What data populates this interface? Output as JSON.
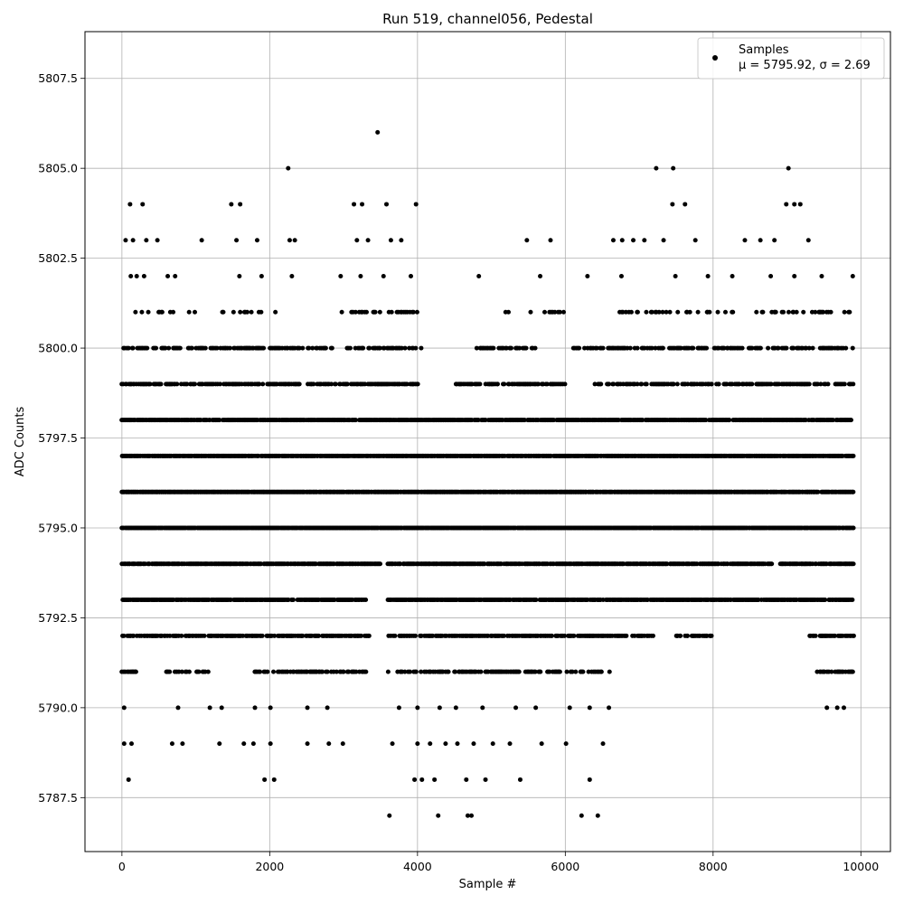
{
  "chart_data": {
    "type": "scatter",
    "title": "Run 519, channel056, Pedestal",
    "xlabel": "Sample #",
    "ylabel": "ADC Counts",
    "xlim": [
      -500,
      10400
    ],
    "ylim": [
      5786.0,
      5808.8
    ],
    "x_ticks": [
      0,
      2000,
      4000,
      6000,
      8000,
      10000
    ],
    "x_tick_labels": [
      "0",
      "2000",
      "4000",
      "6000",
      "8000",
      "10000"
    ],
    "y_ticks": [
      5787.5,
      5790.0,
      5792.5,
      5795.0,
      5797.5,
      5800.0,
      5802.5,
      5805.0,
      5807.5
    ],
    "y_tick_labels": [
      "5787.5",
      "5790.0",
      "5792.5",
      "5795.0",
      "5797.5",
      "5800.0",
      "5802.5",
      "5805.0",
      "5807.5"
    ],
    "grid": true,
    "legend_position": "top-right",
    "color": "#000000",
    "series": [
      {
        "name": "Samples",
        "legend_stats": "μ = 5795.92, σ = 2.69",
        "points": [
          {
            "x": 50,
            "y": 5803
          },
          {
            "x": 110,
            "y": 5804
          },
          {
            "x": 150,
            "y": 5803
          },
          {
            "x": 280,
            "y": 5804
          },
          {
            "x": 330,
            "y": 5803
          },
          {
            "x": 480,
            "y": 5803
          },
          {
            "x": 1080,
            "y": 5803
          },
          {
            "x": 1480,
            "y": 5804
          },
          {
            "x": 1550,
            "y": 5803
          },
          {
            "x": 1600,
            "y": 5804
          },
          {
            "x": 1830,
            "y": 5803
          },
          {
            "x": 2250,
            "y": 5805
          },
          {
            "x": 2270,
            "y": 5803
          },
          {
            "x": 2340,
            "y": 5803
          },
          {
            "x": 3140,
            "y": 5804
          },
          {
            "x": 3180,
            "y": 5803
          },
          {
            "x": 3250,
            "y": 5804
          },
          {
            "x": 3330,
            "y": 5803
          },
          {
            "x": 3460,
            "y": 5806
          },
          {
            "x": 3580,
            "y": 5804
          },
          {
            "x": 3640,
            "y": 5803
          },
          {
            "x": 3780,
            "y": 5803
          },
          {
            "x": 3980,
            "y": 5804
          },
          {
            "x": 5480,
            "y": 5803
          },
          {
            "x": 5800,
            "y": 5803
          },
          {
            "x": 6650,
            "y": 5803
          },
          {
            "x": 6770,
            "y": 5803
          },
          {
            "x": 6920,
            "y": 5803
          },
          {
            "x": 7070,
            "y": 5803
          },
          {
            "x": 7230,
            "y": 5805
          },
          {
            "x": 7330,
            "y": 5803
          },
          {
            "x": 7450,
            "y": 5804
          },
          {
            "x": 7460,
            "y": 5805
          },
          {
            "x": 7620,
            "y": 5804
          },
          {
            "x": 7760,
            "y": 5803
          },
          {
            "x": 8430,
            "y": 5803
          },
          {
            "x": 8640,
            "y": 5803
          },
          {
            "x": 8830,
            "y": 5803
          },
          {
            "x": 8990,
            "y": 5804
          },
          {
            "x": 9020,
            "y": 5805
          },
          {
            "x": 9100,
            "y": 5804
          },
          {
            "x": 9180,
            "y": 5804
          },
          {
            "x": 9290,
            "y": 5803
          },
          {
            "x": 30,
            "y": 5789
          },
          {
            "x": 90,
            "y": 5788
          },
          {
            "x": 130,
            "y": 5789
          },
          {
            "x": 680,
            "y": 5789
          },
          {
            "x": 820,
            "y": 5789
          },
          {
            "x": 1320,
            "y": 5789
          },
          {
            "x": 1650,
            "y": 5789
          },
          {
            "x": 1780,
            "y": 5789
          },
          {
            "x": 1930,
            "y": 5788
          },
          {
            "x": 2060,
            "y": 5788
          },
          {
            "x": 2010,
            "y": 5789
          },
          {
            "x": 2510,
            "y": 5789
          },
          {
            "x": 2800,
            "y": 5789
          },
          {
            "x": 2990,
            "y": 5789
          },
          {
            "x": 3620,
            "y": 5787
          },
          {
            "x": 3660,
            "y": 5789
          },
          {
            "x": 3960,
            "y": 5788
          },
          {
            "x": 4060,
            "y": 5788
          },
          {
            "x": 4000,
            "y": 5789
          },
          {
            "x": 4170,
            "y": 5789
          },
          {
            "x": 4230,
            "y": 5788
          },
          {
            "x": 4280,
            "y": 5787
          },
          {
            "x": 4380,
            "y": 5789
          },
          {
            "x": 4540,
            "y": 5789
          },
          {
            "x": 4660,
            "y": 5788
          },
          {
            "x": 4680,
            "y": 5787
          },
          {
            "x": 4730,
            "y": 5787
          },
          {
            "x": 4760,
            "y": 5789
          },
          {
            "x": 4920,
            "y": 5788
          },
          {
            "x": 5020,
            "y": 5789
          },
          {
            "x": 5250,
            "y": 5789
          },
          {
            "x": 5390,
            "y": 5788
          },
          {
            "x": 5680,
            "y": 5789
          },
          {
            "x": 6010,
            "y": 5789
          },
          {
            "x": 6220,
            "y": 5787
          },
          {
            "x": 6330,
            "y": 5788
          },
          {
            "x": 6440,
            "y": 5787
          },
          {
            "x": 6510,
            "y": 5789
          },
          {
            "x": 30,
            "y": 5790
          },
          {
            "x": 760,
            "y": 5790
          },
          {
            "x": 1190,
            "y": 5790
          },
          {
            "x": 1350,
            "y": 5790
          },
          {
            "x": 1800,
            "y": 5790
          },
          {
            "x": 2010,
            "y": 5790
          },
          {
            "x": 2510,
            "y": 5790
          },
          {
            "x": 2780,
            "y": 5790
          },
          {
            "x": 3750,
            "y": 5790
          },
          {
            "x": 4000,
            "y": 5790
          },
          {
            "x": 4300,
            "y": 5790
          },
          {
            "x": 4520,
            "y": 5790
          },
          {
            "x": 4880,
            "y": 5790
          },
          {
            "x": 5330,
            "y": 5790
          },
          {
            "x": 5600,
            "y": 5790
          },
          {
            "x": 6060,
            "y": 5790
          },
          {
            "x": 6330,
            "y": 5790
          },
          {
            "x": 6590,
            "y": 5790
          },
          {
            "x": 9540,
            "y": 5790
          },
          {
            "x": 9680,
            "y": 5790
          },
          {
            "x": 9770,
            "y": 5790
          },
          {
            "x": 120,
            "y": 5802
          },
          {
            "x": 200,
            "y": 5802
          },
          {
            "x": 300,
            "y": 5802
          },
          {
            "x": 620,
            "y": 5802
          },
          {
            "x": 720,
            "y": 5802
          },
          {
            "x": 1590,
            "y": 5802
          },
          {
            "x": 1890,
            "y": 5802
          },
          {
            "x": 2300,
            "y": 5802
          },
          {
            "x": 2960,
            "y": 5802
          },
          {
            "x": 3230,
            "y": 5802
          },
          {
            "x": 3540,
            "y": 5802
          },
          {
            "x": 3910,
            "y": 5802
          },
          {
            "x": 4830,
            "y": 5802
          },
          {
            "x": 5660,
            "y": 5802
          },
          {
            "x": 6300,
            "y": 5802
          },
          {
            "x": 6760,
            "y": 5802
          },
          {
            "x": 7490,
            "y": 5802
          },
          {
            "x": 7930,
            "y": 5802
          },
          {
            "x": 8260,
            "y": 5802
          },
          {
            "x": 8780,
            "y": 5802
          },
          {
            "x": 9100,
            "y": 5802
          },
          {
            "x": 9470,
            "y": 5802
          },
          {
            "x": 9890,
            "y": 5802
          }
        ],
        "dense_bands": [
          {
            "y": 5801,
            "segments": [
              [
                150,
                1050
              ],
              [
                1250,
                2100
              ],
              [
                2950,
                4100
              ],
              [
                5100,
                6000
              ],
              [
                6500,
                9850
              ]
            ],
            "density": 0.18
          },
          {
            "y": 5800,
            "segments": [
              [
                20,
                800
              ],
              [
                900,
                2850
              ],
              [
                3050,
                4050
              ],
              [
                4800,
                5600
              ],
              [
                6100,
                9900
              ]
            ],
            "density": 0.45
          },
          {
            "y": 5799,
            "segments": [
              [
                0,
                2400
              ],
              [
                2500,
                4000
              ],
              [
                4500,
                5500
              ],
              [
                5500,
                6000
              ],
              [
                6400,
                9900
              ]
            ],
            "density": 0.55
          },
          {
            "y": 5798,
            "segments": [
              [
                0,
                4600
              ],
              [
                4600,
                9900
              ]
            ],
            "density": 0.85
          },
          {
            "y": 5797,
            "segments": [
              [
                0,
                9900
              ]
            ],
            "density": 0.9
          },
          {
            "y": 5796,
            "segments": [
              [
                0,
                9900
              ]
            ],
            "density": 0.95
          },
          {
            "y": 5795,
            "segments": [
              [
                0,
                9900
              ]
            ],
            "density": 0.95
          },
          {
            "y": 5794,
            "segments": [
              [
                0,
                3500
              ],
              [
                3600,
                8800
              ],
              [
                8900,
                9900
              ]
            ],
            "density": 0.85
          },
          {
            "y": 5793,
            "segments": [
              [
                0,
                3300
              ],
              [
                3600,
                9900
              ]
            ],
            "density": 0.8
          },
          {
            "y": 5792,
            "segments": [
              [
                0,
                3350
              ],
              [
                3600,
                7200
              ],
              [
                7500,
                8000
              ],
              [
                9300,
                9900
              ]
            ],
            "density": 0.6
          },
          {
            "y": 5791,
            "segments": [
              [
                0,
                200
              ],
              [
                600,
                1200
              ],
              [
                1800,
                3300
              ],
              [
                3600,
                6600
              ],
              [
                9400,
                9900
              ]
            ],
            "density": 0.45
          }
        ]
      }
    ]
  }
}
